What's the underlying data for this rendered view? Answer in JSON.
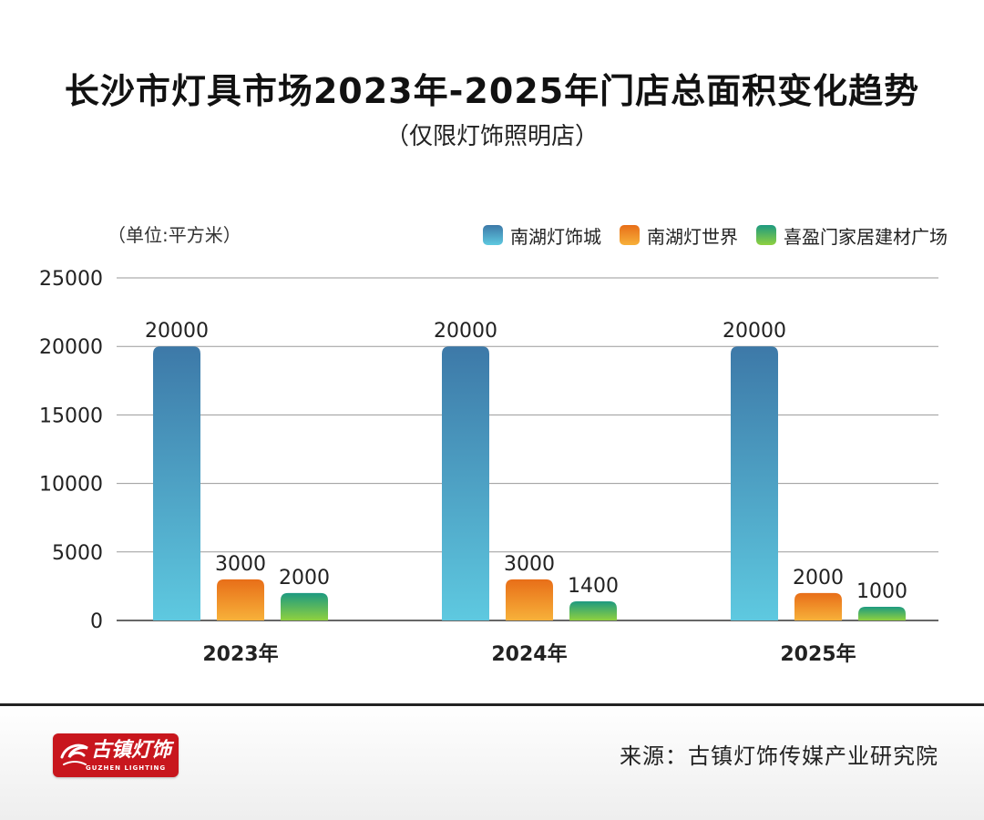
{
  "chart_data": {
    "type": "bar",
    "title": "长沙市灯具市场2023年-2025年门店总面积变化趋势",
    "subtitle": "（仅限灯饰照明店）",
    "unit_label": "（单位:平方米）",
    "categories": [
      "2023年",
      "2024年",
      "2025年"
    ],
    "series": [
      {
        "name": "南湖灯饰城",
        "values": [
          20000,
          20000,
          20000
        ],
        "color_top": "#3d79a8",
        "color_bottom": "#5ec9e0"
      },
      {
        "name": "南湖灯世界",
        "values": [
          3000,
          3000,
          2000
        ],
        "color_top": "#e86e18",
        "color_bottom": "#f7b13a"
      },
      {
        "name": "喜盈门家居建材广场",
        "values": [
          2000,
          1400,
          1000
        ],
        "color_top": "#1d9a80",
        "color_bottom": "#8fd13f"
      }
    ],
    "y_ticks": [
      0,
      5000,
      10000,
      15000,
      20000,
      25000
    ],
    "ylim": [
      0,
      25000
    ],
    "grid": true,
    "legend_position": "top-right",
    "xlabel": "",
    "ylabel": ""
  },
  "footer": {
    "logo_text": "古镇灯饰",
    "logo_subtext": "GUZHEN LIGHTING",
    "source": "来源：古镇灯饰传媒产业研究院"
  }
}
